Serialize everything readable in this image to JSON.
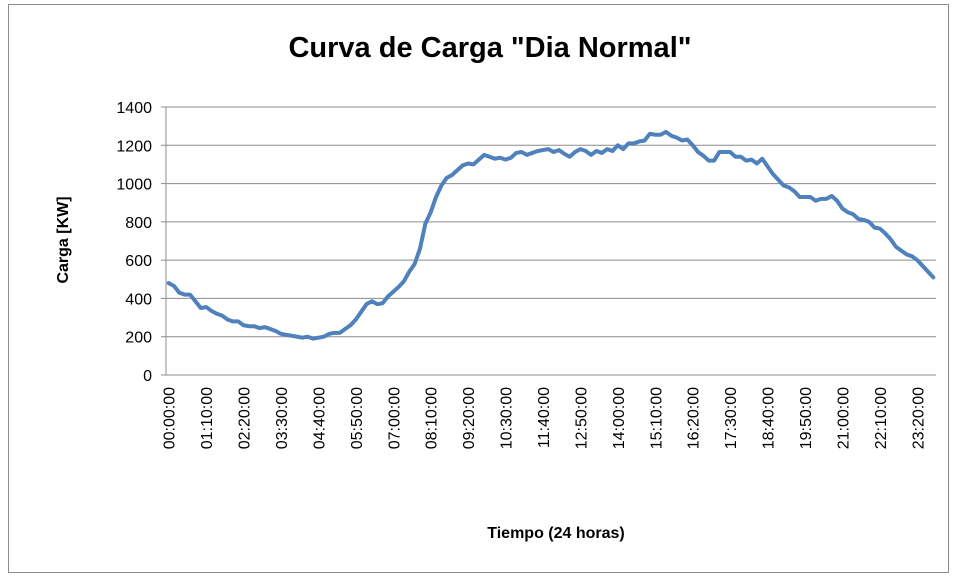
{
  "chart_data": {
    "type": "line",
    "title": "Curva de Carga \"Dia Normal\"",
    "y_label": "Carga [KW]",
    "x_label": "Tiempo (24 horas)",
    "categories": [
      "00:00:00",
      null,
      null,
      null,
      null,
      null,
      null,
      "01:10:00",
      null,
      null,
      null,
      null,
      null,
      null,
      "02:20:00",
      null,
      null,
      null,
      null,
      null,
      null,
      "03:30:00",
      null,
      null,
      null,
      null,
      null,
      null,
      "04:40:00",
      null,
      null,
      null,
      null,
      null,
      null,
      "05:50:00",
      null,
      null,
      null,
      null,
      null,
      null,
      "07:00:00",
      null,
      null,
      null,
      null,
      null,
      null,
      "08:10:00",
      null,
      null,
      null,
      null,
      null,
      null,
      "09:20:00",
      null,
      null,
      null,
      null,
      null,
      null,
      "10:30:00",
      null,
      null,
      null,
      null,
      null,
      null,
      "11:40:00",
      null,
      null,
      null,
      null,
      null,
      null,
      "12:50:00",
      null,
      null,
      null,
      null,
      null,
      null,
      "14:00:00",
      null,
      null,
      null,
      null,
      null,
      null,
      "15:10:00",
      null,
      null,
      null,
      null,
      null,
      null,
      "16:20:00",
      null,
      null,
      null,
      null,
      null,
      null,
      "17:30:00",
      null,
      null,
      null,
      null,
      null,
      null,
      "18:40:00",
      null,
      null,
      null,
      null,
      null,
      null,
      "19:50:00",
      null,
      null,
      null,
      null,
      null,
      null,
      "21:00:00",
      null,
      null,
      null,
      null,
      null,
      null,
      "22:10:00",
      null,
      null,
      null,
      null,
      null,
      null,
      "23:20:00",
      null,
      null,
      null
    ],
    "series": [
      {
        "name": "Carga",
        "color": "#4f81bd",
        "values": [
          480,
          465,
          430,
          420,
          420,
          385,
          350,
          355,
          335,
          320,
          310,
          290,
          280,
          280,
          260,
          255,
          255,
          245,
          250,
          240,
          230,
          215,
          210,
          205,
          200,
          195,
          200,
          190,
          195,
          200,
          215,
          220,
          220,
          240,
          260,
          290,
          330,
          370,
          385,
          370,
          375,
          410,
          435,
          460,
          490,
          540,
          580,
          660,
          790,
          850,
          930,
          990,
          1030,
          1045,
          1070,
          1095,
          1105,
          1100,
          1125,
          1150,
          1140,
          1130,
          1135,
          1125,
          1135,
          1160,
          1165,
          1150,
          1160,
          1170,
          1175,
          1180,
          1165,
          1175,
          1155,
          1140,
          1165,
          1180,
          1170,
          1150,
          1170,
          1160,
          1180,
          1170,
          1200,
          1180,
          1210,
          1210,
          1220,
          1225,
          1260,
          1255,
          1255,
          1270,
          1250,
          1240,
          1225,
          1230,
          1200,
          1165,
          1145,
          1120,
          1120,
          1165,
          1165,
          1165,
          1140,
          1140,
          1120,
          1125,
          1105,
          1130,
          1090,
          1050,
          1020,
          990,
          980,
          960,
          930,
          930,
          930,
          910,
          920,
          920,
          935,
          910,
          870,
          850,
          840,
          815,
          810,
          800,
          770,
          765,
          740,
          710,
          670,
          650,
          630,
          620,
          600,
          570,
          540,
          510
        ]
      }
    ],
    "ylim": [
      0,
      1400
    ],
    "yticks": [
      0,
      200,
      400,
      600,
      800,
      1000,
      1200,
      1400
    ],
    "grid": true
  }
}
